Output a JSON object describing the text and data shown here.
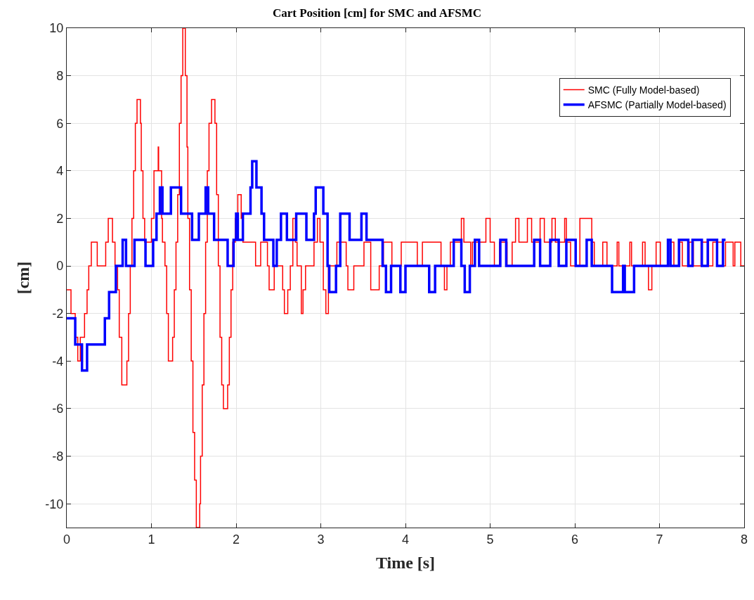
{
  "chart_data": {
    "type": "step",
    "title": "Cart Position [cm] for SMC and AFSMC",
    "xlabel": "Time [s]",
    "ylabel": "[cm]",
    "xlim": [
      0,
      8
    ],
    "xticks": [
      0,
      1,
      2,
      3,
      4,
      5,
      6,
      7,
      8
    ],
    "ylim": [
      -11,
      10
    ],
    "yticks": [
      -10,
      -8,
      -6,
      -4,
      -2,
      0,
      2,
      4,
      6,
      8,
      10
    ],
    "grid": true,
    "legend": "top right",
    "marker": "none",
    "line_style": "solid",
    "series": [
      {
        "name": "SMC (Fully Model-based)",
        "color": "#ff0000",
        "x": [
          0,
          0.05,
          0.1,
          0.13,
          0.16,
          0.21,
          0.24,
          0.26,
          0.29,
          0.36,
          0.46,
          0.49,
          0.54,
          0.57,
          0.6,
          0.62,
          0.65,
          0.71,
          0.73,
          0.75,
          0.77,
          0.79,
          0.81,
          0.83,
          0.87,
          0.88,
          0.9,
          0.92,
          1.0,
          1.03,
          1.08,
          1.085,
          1.12,
          1.13,
          1.16,
          1.18,
          1.2,
          1.25,
          1.27,
          1.29,
          1.31,
          1.33,
          1.35,
          1.37,
          1.4,
          1.42,
          1.43,
          1.45,
          1.47,
          1.49,
          1.51,
          1.53,
          1.57,
          1.58,
          1.6,
          1.62,
          1.64,
          1.66,
          1.68,
          1.71,
          1.75,
          1.77,
          1.79,
          1.81,
          1.83,
          1.85,
          1.9,
          1.92,
          1.94,
          1.96,
          1.99,
          2.02,
          2.06,
          2.08,
          2.23,
          2.29,
          2.37,
          2.39,
          2.45,
          2.55,
          2.57,
          2.61,
          2.64,
          2.67,
          2.7,
          2.72,
          2.77,
          2.79,
          2.82,
          2.92,
          2.96,
          2.99,
          3.03,
          3.06,
          3.09,
          3.19,
          3.3,
          3.32,
          3.39,
          3.51,
          3.59,
          3.69,
          3.74,
          3.84,
          3.95,
          4.14,
          4.2,
          4.42,
          4.46,
          4.49,
          4.53,
          4.66,
          4.69,
          4.77,
          4.79,
          4.95,
          5.0,
          5.05,
          5.11,
          5.2,
          5.26,
          5.3,
          5.34,
          5.44,
          5.49,
          5.59,
          5.64,
          5.73,
          5.77,
          5.88,
          5.9,
          5.95,
          6.06,
          6.2,
          6.23,
          6.33,
          6.38,
          6.5,
          6.52,
          6.65,
          6.67,
          6.8,
          6.83,
          6.87,
          6.91,
          6.96,
          7.01,
          7.13,
          7.17,
          7.24,
          7.27,
          7.35,
          7.4,
          7.49,
          7.58,
          7.63,
          7.75,
          7.78,
          7.87,
          7.89,
          7.96,
          8
        ],
        "values": [
          -1,
          -2,
          -3,
          -4,
          -3,
          -2,
          -1,
          0,
          1,
          0,
          1,
          2,
          1,
          0,
          -1,
          -3,
          -5,
          -4,
          -2,
          0,
          2,
          4,
          6,
          7,
          6,
          4,
          2,
          1,
          2,
          4,
          5,
          4,
          2,
          1,
          0,
          -2,
          -4,
          -3,
          -1,
          1,
          3,
          6,
          8,
          10,
          8,
          5,
          2,
          -1,
          -4,
          -7,
          -9,
          -11,
          -10,
          -8,
          -5,
          -2,
          1,
          4,
          6,
          7,
          6,
          3,
          0,
          -3,
          -5,
          -6,
          -5,
          -3,
          -1,
          1,
          2,
          3,
          2,
          1,
          0,
          1,
          0,
          -1,
          0,
          -1,
          -2,
          -1,
          0,
          2,
          1,
          0,
          -2,
          -1,
          0,
          1,
          2,
          1,
          -1,
          -2,
          0,
          1,
          0,
          -1,
          0,
          1,
          -1,
          0,
          1,
          0,
          1,
          0,
          1,
          0,
          -1,
          0,
          1,
          2,
          1,
          0,
          1,
          2,
          1,
          0,
          1,
          0,
          1,
          2,
          1,
          2,
          1,
          2,
          1,
          2,
          1,
          2,
          1,
          0,
          2,
          1,
          0,
          1,
          0,
          1,
          0,
          1,
          0,
          1,
          0,
          -1,
          0,
          1,
          0,
          1,
          0,
          1,
          0,
          1,
          0,
          1,
          0,
          1,
          0,
          1,
          0,
          1,
          0,
          0
        ]
      },
      {
        "name": "AFSMC (Partially Model-based)",
        "color": "#0000ff",
        "x": [
          0,
          0.1,
          0.18,
          0.24,
          0.45,
          0.5,
          0.58,
          0.66,
          0.7,
          0.8,
          0.93,
          1.02,
          1.06,
          1.1,
          1.13,
          1.23,
          1.35,
          1.48,
          1.56,
          1.64,
          1.67,
          1.74,
          1.9,
          1.97,
          2.0,
          2.02,
          2.08,
          2.17,
          2.19,
          2.24,
          2.3,
          2.33,
          2.44,
          2.48,
          2.53,
          2.6,
          2.71,
          2.83,
          2.92,
          2.94,
          3.03,
          3.08,
          3.1,
          3.18,
          3.23,
          3.34,
          3.48,
          3.54,
          3.73,
          3.77,
          3.83,
          3.94,
          4.0,
          4.28,
          4.35,
          4.57,
          4.66,
          4.7,
          4.76,
          4.82,
          4.87,
          5.12,
          5.19,
          5.52,
          5.59,
          5.71,
          5.81,
          5.9,
          6.01,
          6.14,
          6.2,
          6.44,
          6.57,
          6.59,
          6.7,
          7.1,
          7.13,
          7.23,
          7.34,
          7.39,
          7.5,
          7.57,
          7.68,
          7.75,
          7.78
        ],
        "values": [
          -2.2,
          -3.3,
          -4.4,
          -3.3,
          -2.2,
          -1.1,
          0,
          1.1,
          0,
          1.1,
          0,
          1.1,
          2.2,
          3.3,
          2.2,
          3.3,
          2.2,
          1.1,
          2.2,
          3.3,
          2.2,
          1.1,
          0,
          1.1,
          2.2,
          1.1,
          2.2,
          3.3,
          4.4,
          3.3,
          2.2,
          1.1,
          0,
          1.1,
          2.2,
          1.1,
          2.2,
          1.1,
          2.2,
          3.3,
          2.2,
          0,
          -1.1,
          0,
          2.2,
          1.1,
          2.2,
          1.1,
          0,
          -1.1,
          0,
          -1.1,
          0,
          -1.1,
          0,
          1.1,
          0,
          -1.1,
          0,
          1.1,
          0,
          1.1,
          0,
          1.1,
          0,
          1.1,
          0,
          1.1,
          0,
          1.1,
          0,
          -1.1,
          0,
          -1.1,
          0,
          1.1,
          0,
          1.1,
          0,
          1.1,
          0,
          1.1,
          0,
          1.1,
          1.1
        ]
      }
    ]
  }
}
